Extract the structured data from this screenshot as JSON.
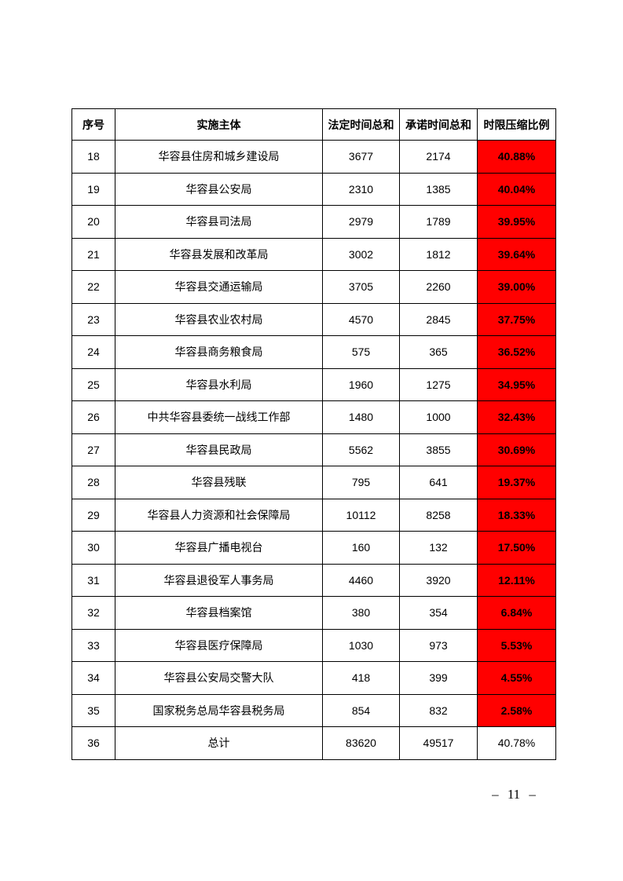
{
  "page": {
    "number": "– 11 –"
  },
  "colors": {
    "highlight_red": "#FF0000",
    "border": "#000000",
    "text": "#000000",
    "background": "#FFFFFF"
  },
  "table": {
    "headers": [
      "序号",
      "实施主体",
      "法定时间总和",
      "承诺时间总和",
      "时限压缩比例"
    ],
    "rows": [
      {
        "no": "18",
        "entity": "华容县住房和城乡建设局",
        "legal": "3677",
        "promised": "2174",
        "ratio": "40.88%",
        "highlight": true
      },
      {
        "no": "19",
        "entity": "华容县公安局",
        "legal": "2310",
        "promised": "1385",
        "ratio": "40.04%",
        "highlight": true
      },
      {
        "no": "20",
        "entity": "华容县司法局",
        "legal": "2979",
        "promised": "1789",
        "ratio": "39.95%",
        "highlight": true
      },
      {
        "no": "21",
        "entity": "华容县发展和改革局",
        "legal": "3002",
        "promised": "1812",
        "ratio": "39.64%",
        "highlight": true
      },
      {
        "no": "22",
        "entity": "华容县交通运输局",
        "legal": "3705",
        "promised": "2260",
        "ratio": "39.00%",
        "highlight": true
      },
      {
        "no": "23",
        "entity": "华容县农业农村局",
        "legal": "4570",
        "promised": "2845",
        "ratio": "37.75%",
        "highlight": true
      },
      {
        "no": "24",
        "entity": "华容县商务粮食局",
        "legal": "575",
        "promised": "365",
        "ratio": "36.52%",
        "highlight": true
      },
      {
        "no": "25",
        "entity": "华容县水利局",
        "legal": "1960",
        "promised": "1275",
        "ratio": "34.95%",
        "highlight": true
      },
      {
        "no": "26",
        "entity": "中共华容县委统一战线工作部",
        "legal": "1480",
        "promised": "1000",
        "ratio": "32.43%",
        "highlight": true
      },
      {
        "no": "27",
        "entity": "华容县民政局",
        "legal": "5562",
        "promised": "3855",
        "ratio": "30.69%",
        "highlight": true
      },
      {
        "no": "28",
        "entity": "华容县残联",
        "legal": "795",
        "promised": "641",
        "ratio": "19.37%",
        "highlight": true
      },
      {
        "no": "29",
        "entity": "华容县人力资源和社会保障局",
        "legal": "10112",
        "promised": "8258",
        "ratio": "18.33%",
        "highlight": true
      },
      {
        "no": "30",
        "entity": "华容县广播电视台",
        "legal": "160",
        "promised": "132",
        "ratio": "17.50%",
        "highlight": true
      },
      {
        "no": "31",
        "entity": "华容县退役军人事务局",
        "legal": "4460",
        "promised": "3920",
        "ratio": "12.11%",
        "highlight": true
      },
      {
        "no": "32",
        "entity": "华容县档案馆",
        "legal": "380",
        "promised": "354",
        "ratio": "6.84%",
        "highlight": true
      },
      {
        "no": "33",
        "entity": "华容县医疗保障局",
        "legal": "1030",
        "promised": "973",
        "ratio": "5.53%",
        "highlight": true
      },
      {
        "no": "34",
        "entity": "华容县公安局交警大队",
        "legal": "418",
        "promised": "399",
        "ratio": "4.55%",
        "highlight": true
      },
      {
        "no": "35",
        "entity": "国家税务总局华容县税务局",
        "legal": "854",
        "promised": "832",
        "ratio": "2.58%",
        "highlight": true
      },
      {
        "no": "36",
        "entity": "总计",
        "legal": "83620",
        "promised": "49517",
        "ratio": "40.78%",
        "highlight": false
      }
    ]
  }
}
